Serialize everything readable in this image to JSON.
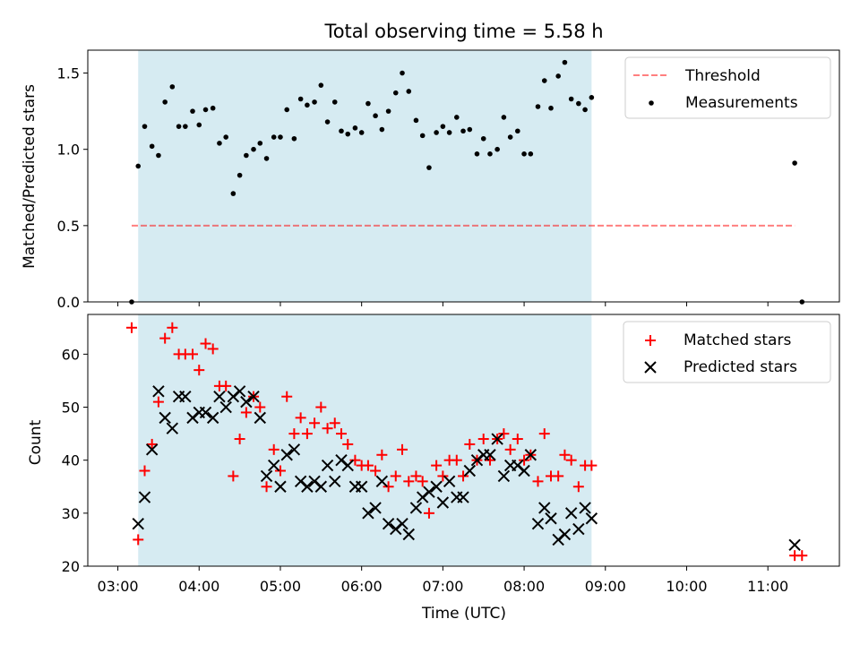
{
  "title": "Total observing time = 5.58 h",
  "xlabel": "Time (UTC)",
  "x_ticks": [
    "03:00",
    "04:00",
    "05:00",
    "06:00",
    "07:00",
    "08:00",
    "09:00",
    "10:00",
    "11:00"
  ],
  "colors": {
    "span": "#add8e6",
    "threshold": "#ff0000",
    "measurements": "#000000",
    "matched": "#ff0000",
    "predicted": "#000000"
  },
  "chart_data": [
    {
      "type": "scatter",
      "ylabel": "Matched/Predicted stars",
      "xlim_hours": [
        2.63,
        11.88
      ],
      "ylim": [
        0,
        1.65
      ],
      "y_ticks": [
        "0.0",
        "0.5",
        "1.0",
        "1.5"
      ],
      "y_tick_values": [
        0,
        0.5,
        1.0,
        1.5
      ],
      "legend_position": "top-right",
      "observing_span_hours": [
        3.25,
        8.83
      ],
      "threshold": {
        "name": "Threshold",
        "value": 0.5,
        "x_range_hours": [
          3.17,
          11.33
        ]
      },
      "series": [
        {
          "name": "Measurements",
          "x_hours": [
            3.17,
            3.25,
            3.33,
            3.42,
            3.5,
            3.58,
            3.67,
            3.75,
            3.83,
            3.92,
            4.0,
            4.08,
            4.17,
            4.25,
            4.33,
            4.42,
            4.5,
            4.58,
            4.67,
            4.75,
            4.83,
            4.92,
            5.0,
            5.08,
            5.17,
            5.25,
            5.33,
            5.42,
            5.5,
            5.58,
            5.67,
            5.75,
            5.83,
            5.92,
            6.0,
            6.08,
            6.17,
            6.25,
            6.33,
            6.42,
            6.5,
            6.58,
            6.67,
            6.75,
            6.83,
            6.92,
            7.0,
            7.08,
            7.17,
            7.25,
            7.33,
            7.42,
            7.5,
            7.58,
            7.67,
            7.75,
            7.83,
            7.92,
            8.0,
            8.08,
            8.17,
            8.25,
            8.33,
            8.42,
            8.5,
            8.58,
            8.67,
            8.75,
            8.83,
            11.33,
            11.42
          ],
          "values": [
            0.0,
            0.89,
            1.15,
            1.02,
            0.96,
            1.31,
            1.41,
            1.15,
            1.15,
            1.25,
            1.16,
            1.26,
            1.27,
            1.04,
            1.08,
            0.71,
            0.83,
            0.96,
            1.0,
            1.04,
            0.94,
            1.08,
            1.08,
            1.26,
            1.07,
            1.33,
            1.29,
            1.31,
            1.42,
            1.18,
            1.31,
            1.12,
            1.1,
            1.14,
            1.11,
            1.3,
            1.22,
            1.13,
            1.25,
            1.37,
            1.5,
            1.38,
            1.19,
            1.09,
            0.88,
            1.11,
            1.15,
            1.11,
            1.21,
            1.12,
            1.13,
            0.97,
            1.07,
            0.97,
            1.0,
            1.21,
            1.08,
            1.12,
            0.97,
            0.97,
            1.28,
            1.45,
            1.27,
            1.48,
            1.57,
            1.33,
            1.3,
            1.26,
            1.34,
            0.91,
            0.0
          ]
        }
      ]
    },
    {
      "type": "scatter",
      "ylabel": "Count",
      "xlim_hours": [
        2.63,
        11.88
      ],
      "ylim": [
        20,
        67.5
      ],
      "y_ticks": [
        "20",
        "30",
        "40",
        "50",
        "60"
      ],
      "y_tick_values": [
        20,
        30,
        40,
        50,
        60
      ],
      "legend_position": "top-right",
      "observing_span_hours": [
        3.25,
        8.83
      ],
      "series": [
        {
          "name": "Matched stars",
          "marker": "plus",
          "x_hours": [
            3.17,
            3.25,
            3.33,
            3.42,
            3.5,
            3.58,
            3.67,
            3.75,
            3.83,
            3.92,
            4.0,
            4.08,
            4.17,
            4.25,
            4.33,
            4.42,
            4.5,
            4.58,
            4.67,
            4.75,
            4.83,
            4.92,
            5.0,
            5.08,
            5.17,
            5.25,
            5.33,
            5.42,
            5.5,
            5.58,
            5.67,
            5.75,
            5.83,
            5.92,
            6.0,
            6.08,
            6.17,
            6.25,
            6.33,
            6.42,
            6.5,
            6.58,
            6.67,
            6.75,
            6.83,
            6.92,
            7.0,
            7.08,
            7.17,
            7.25,
            7.33,
            7.42,
            7.5,
            7.58,
            7.67,
            7.75,
            7.83,
            7.92,
            8.0,
            8.08,
            8.17,
            8.25,
            8.33,
            8.42,
            8.5,
            8.58,
            8.67,
            8.75,
            8.83,
            11.33,
            11.42
          ],
          "values": [
            65,
            25,
            38,
            43,
            51,
            63,
            65,
            60,
            60,
            60,
            57,
            62,
            61,
            54,
            54,
            37,
            44,
            49,
            52,
            50,
            35,
            42,
            38,
            52,
            45,
            48,
            45,
            47,
            50,
            46,
            47,
            45,
            43,
            40,
            39,
            39,
            38,
            41,
            35,
            37,
            42,
            36,
            37,
            36,
            30,
            39,
            37,
            40,
            40,
            37,
            43,
            40,
            44,
            40,
            44,
            45,
            42,
            44,
            40,
            41,
            36,
            45,
            37,
            37,
            41,
            40,
            35,
            39,
            39,
            22,
            22
          ]
        },
        {
          "name": "Predicted stars",
          "marker": "x",
          "x_hours": [
            3.25,
            3.33,
            3.42,
            3.5,
            3.58,
            3.67,
            3.75,
            3.83,
            3.92,
            4.0,
            4.08,
            4.17,
            4.25,
            4.33,
            4.42,
            4.5,
            4.58,
            4.67,
            4.75,
            4.83,
            4.92,
            5.0,
            5.08,
            5.17,
            5.25,
            5.33,
            5.42,
            5.5,
            5.58,
            5.67,
            5.75,
            5.83,
            5.92,
            6.0,
            6.08,
            6.17,
            6.25,
            6.33,
            6.42,
            6.5,
            6.58,
            6.67,
            6.75,
            6.83,
            6.92,
            7.0,
            7.08,
            7.17,
            7.25,
            7.33,
            7.42,
            7.5,
            7.58,
            7.67,
            7.75,
            7.83,
            7.92,
            8.0,
            8.08,
            8.17,
            8.25,
            8.33,
            8.42,
            8.5,
            8.58,
            8.67,
            8.75,
            8.83,
            11.33
          ],
          "values": [
            28,
            33,
            42,
            53,
            48,
            46,
            52,
            52,
            48,
            49,
            49,
            48,
            52,
            50,
            52,
            53,
            51,
            52,
            48,
            37,
            39,
            35,
            41,
            42,
            36,
            35,
            36,
            35,
            39,
            36,
            40,
            39,
            35,
            35,
            30,
            31,
            36,
            28,
            27,
            28,
            26,
            31,
            33,
            34,
            35,
            32,
            36,
            33,
            33,
            38,
            40,
            41,
            41,
            44,
            37,
            39,
            39,
            38,
            41,
            28,
            31,
            29,
            25,
            26,
            30,
            27,
            31,
            29,
            24
          ]
        }
      ]
    }
  ]
}
